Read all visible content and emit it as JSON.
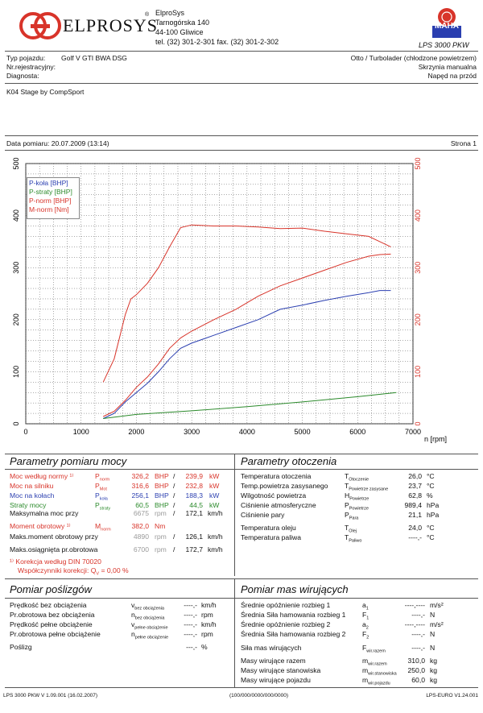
{
  "header": {
    "logo_text": "ELPROSYS",
    "logo_reg": "®",
    "company": [
      "ElproSys",
      "Tarnogórska 140",
      "44-100 Gliwice",
      "tel. (32) 301-2-301   fax. (32) 301-2-302"
    ],
    "maha_text": "MAHA",
    "lps_label": "LPS 3000 PKW"
  },
  "vehicle": {
    "type_label": "Typ pojazdu:",
    "type_value": "Golf V GTI BWA DSG",
    "reg_label": "Nr.rejestracyjny:",
    "diag_label": "Diagnosta:",
    "engine": "Otto / Turbolader (chłodzone powietrzem)",
    "gearbox": "Skrzynia manualna",
    "drive": "Napęd na przód",
    "note": "K04 Stage by CompSport",
    "date": "Data pomiaru: 20.07.2009 (13:14)",
    "page": "Strona 1"
  },
  "chart_data": {
    "type": "line",
    "xlabel": "n [rpm]",
    "x_ticks": [
      "0",
      "1000",
      "2000",
      "3000",
      "4000",
      "5000",
      "6000",
      "7000"
    ],
    "y_left_ticks": [
      "0",
      "100",
      "200",
      "300",
      "400",
      "500"
    ],
    "y_right_ticks": [
      "0",
      "100",
      "200",
      "300",
      "400",
      "500"
    ],
    "xlim": [
      0,
      7000
    ],
    "ylim": [
      0,
      500
    ],
    "grid": true,
    "legend_position": "top-left",
    "series": [
      {
        "name": "P-koła [BHP]",
        "color": "#2b3fb0",
        "x": [
          1400,
          1600,
          1800,
          2000,
          2200,
          2400,
          2600,
          2800,
          3000,
          3400,
          3800,
          4200,
          4600,
          5000,
          5400,
          5800,
          6200,
          6400,
          6600
        ],
        "y": [
          10,
          20,
          42,
          60,
          78,
          100,
          125,
          145,
          155,
          170,
          185,
          200,
          220,
          228,
          237,
          245,
          252,
          256,
          256
        ]
      },
      {
        "name": "P-straty [BHP]",
        "color": "#2b8a2b",
        "x": [
          1400,
          2000,
          3000,
          4000,
          5000,
          6000,
          6700
        ],
        "y": [
          10,
          18,
          25,
          33,
          42,
          52,
          60
        ]
      },
      {
        "name": "P-norm [BHP]",
        "color": "#d8342a",
        "x": [
          1400,
          1600,
          1800,
          2000,
          2200,
          2400,
          2600,
          2800,
          3000,
          3400,
          3800,
          4200,
          4600,
          5000,
          5400,
          5800,
          6200,
          6400,
          6600
        ],
        "y": [
          14,
          24,
          45,
          70,
          90,
          115,
          145,
          165,
          178,
          200,
          220,
          245,
          265,
          280,
          295,
          310,
          322,
          325,
          326
        ]
      },
      {
        "name": "M-norm [Nm]",
        "color": "#d8342a",
        "x": [
          1400,
          1600,
          1800,
          1900,
          2000,
          2200,
          2400,
          2600,
          2800,
          3000,
          3400,
          3800,
          4200,
          4600,
          5000,
          5400,
          5800,
          6200,
          6400,
          6600
        ],
        "y": [
          80,
          125,
          210,
          240,
          248,
          270,
          300,
          340,
          377,
          382,
          380,
          380,
          378,
          375,
          376,
          370,
          365,
          360,
          350,
          340
        ]
      }
    ]
  },
  "measure": {
    "title": "Parametry pomiaru mocy",
    "rows": [
      {
        "label": "Moc według normy ¹⁾",
        "sym": "P",
        "sub": "norm",
        "v1": "326,2",
        "u1": "BHP",
        "v2": "239,9",
        "u2": "kW",
        "color": "red"
      },
      {
        "label": "Moc na silniku",
        "sym": "P",
        "sub": "Mot",
        "v1": "316,6",
        "u1": "BHP",
        "v2": "232,8",
        "u2": "kW",
        "color": "red"
      },
      {
        "label": "Moc na kołach",
        "sym": "P",
        "sub": "koła",
        "v1": "256,1",
        "u1": "BHP",
        "v2": "188,3",
        "u2": "kW",
        "color": "blue"
      },
      {
        "label": "Straty mocy",
        "sym": "P",
        "sub": "straty",
        "v1": "60,5",
        "u1": "BHP",
        "v2": "44,5",
        "u2": "kW",
        "color": "green"
      }
    ],
    "max_power_label": "Maksymalna moc przy",
    "max_power_rpm": "6675",
    "max_power_speed": "172,1",
    "torque_label": "Moment obrotowy ¹⁾",
    "torque_sym": "M",
    "torque_sub": "norm",
    "torque_value": "382,0",
    "torque_unit": "Nm",
    "max_torque_label": "Maks.moment obrotowy przy",
    "max_torque_rpm": "4890",
    "max_torque_speed": "126,1",
    "max_speed_label": "Maks.osiągnięta pr.obrotowa",
    "max_speed_rpm": "6700",
    "max_speed_speed": "172,7",
    "rpm_unit": "rpm",
    "speed_unit": "km/h",
    "slash": "/",
    "note1": "¹⁾ Korekcja według DIN 70020",
    "note2": "Współczynniki korekcji: Q",
    "note2_sub": "V",
    "note2_val": "=   0,00 %"
  },
  "env": {
    "title": "Parametry otoczenia",
    "rows": [
      {
        "label": "Temperatura otoczenia",
        "sym": "T",
        "sub": "Otoczenie",
        "val": "26,0",
        "unit": "°C"
      },
      {
        "label": "Temp.powietrza zasysanego",
        "sym": "T",
        "sub": "Powietrze zasysane",
        "val": "23,7",
        "unit": "°C"
      },
      {
        "label": "Wilgotność powietrza",
        "sym": "H",
        "sub": "Powietrze",
        "val": "62,8",
        "unit": "%"
      },
      {
        "label": "Ciśnienie atmosferyczne",
        "sym": "P",
        "sub": "Powietrze",
        "val": "989,4",
        "unit": "hPa"
      },
      {
        "label": "Ciśnienie pary",
        "sym": "P",
        "sub": "Para",
        "val": "21,1",
        "unit": "hPa"
      },
      {
        "label": "Temperatura oleju",
        "sym": "T",
        "sub": "Olej",
        "val": "24,0",
        "unit": "°C"
      },
      {
        "label": "Temperatura paliwa",
        "sym": "T",
        "sub": "Paliwo",
        "val": "----,-",
        "unit": "°C"
      }
    ]
  },
  "slip": {
    "title": "Pomiar poślizgów",
    "rows": [
      {
        "label": "Prędkość bez obciążenia",
        "sym": "v",
        "sub": "bez obciążenia",
        "val": "----,-",
        "unit": "km/h"
      },
      {
        "label": "Pr.obrotowa bez obciążenia",
        "sym": "n",
        "sub": "bez obciążenia",
        "val": "----,-",
        "unit": "rpm"
      },
      {
        "label": "Prędkość pełne obciążenie",
        "sym": "v",
        "sub": "pełne obciążenie",
        "val": "----,-",
        "unit": "km/h"
      },
      {
        "label": "Pr.obrotowa pełne obciążenie",
        "sym": "n",
        "sub": "pełne obciążenie",
        "val": "----,-",
        "unit": "rpm"
      },
      {
        "label": "Poślizg",
        "sym": "",
        "sub": "",
        "val": "---,-",
        "unit": "%"
      }
    ]
  },
  "mass": {
    "title": "Pomiar mas wirujących",
    "rows": [
      {
        "label": "Średnie opóźnienie rozbieg 1",
        "sym": "a",
        "sub": "1",
        "val": "----,----",
        "unit": "m/s²"
      },
      {
        "label": "Średnia Siła hamowania rozbieg 1",
        "sym": "F",
        "sub": "1",
        "val": "----,-",
        "unit": "N"
      },
      {
        "label": "Średnie opóźnienie rozbieg 2",
        "sym": "a",
        "sub": "2",
        "val": "----,----",
        "unit": "m/s²"
      },
      {
        "label": "Średnia Siła hamowania rozbieg 2",
        "sym": "F",
        "sub": "2",
        "val": "----,-",
        "unit": "N"
      },
      {
        "label": "Siła mas wirujących",
        "sym": "F",
        "sub": "wir.razem",
        "val": "----,-",
        "unit": "N"
      },
      {
        "label": "Masy wirujące razem",
        "sym": "m",
        "sub": "wir.razem",
        "val": "310,0",
        "unit": "kg"
      },
      {
        "label": "Masy wirujące stanowiska",
        "sym": "m",
        "sub": "wir.stanowiska",
        "val": "250,0",
        "unit": "kg"
      },
      {
        "label": "Masy wirujące pojazdu",
        "sym": "m",
        "sub": "wir.pojazdu",
        "val": "60,0",
        "unit": "kg"
      }
    ]
  },
  "footer": {
    "left": "LPS 3000 PKW V 1.09.001 (16.02.2007)",
    "center": "(100/000/0000/000/0000)",
    "right": "LPS-EURO V1.24.001"
  }
}
